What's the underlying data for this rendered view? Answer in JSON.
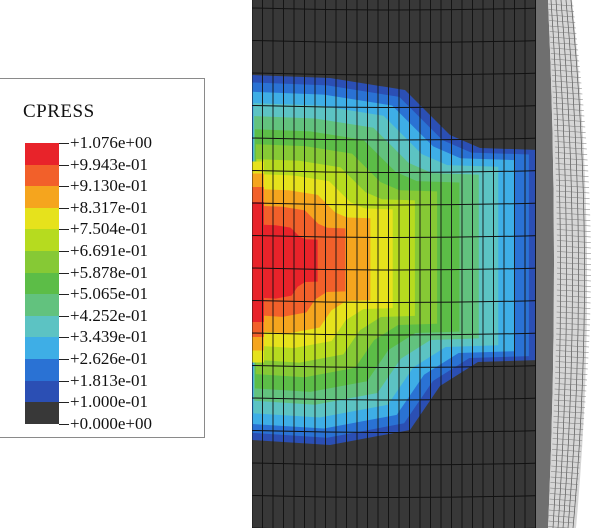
{
  "legend": {
    "title": "CPRESS",
    "labels": [
      "+1.076e+00",
      "+9.943e-01",
      "+9.130e-01",
      "+8.317e-01",
      "+7.504e-01",
      "+6.691e-01",
      "+5.878e-01",
      "+5.065e-01",
      "+4.252e-01",
      "+3.439e-01",
      "+2.626e-01",
      "+1.813e-01",
      "+1.000e-01",
      "+0.000e+00"
    ],
    "colors": [
      "#e8232a",
      "#f2602a",
      "#f5a51e",
      "#e6e21c",
      "#b6db1f",
      "#86c935",
      "#5cbd47",
      "#62c27e",
      "#5cc3c3",
      "#3eaee6",
      "#2a72d4",
      "#2b4fb4",
      "#383838"
    ]
  },
  "contact_band_colors": [
    "#e8232a",
    "#f2602a",
    "#f5a51e",
    "#e6e21c",
    "#b6db1f",
    "#86c935",
    "#5cbd47",
    "#62c27e",
    "#5cc3c3",
    "#3eaee6",
    "#2a72d4",
    "#2b4fb4"
  ],
  "mesh_colors": {
    "background": "#383838",
    "line": "#111111",
    "rim_face": "#d6d6d6",
    "rim_shadow": "#6f6f6f"
  }
}
